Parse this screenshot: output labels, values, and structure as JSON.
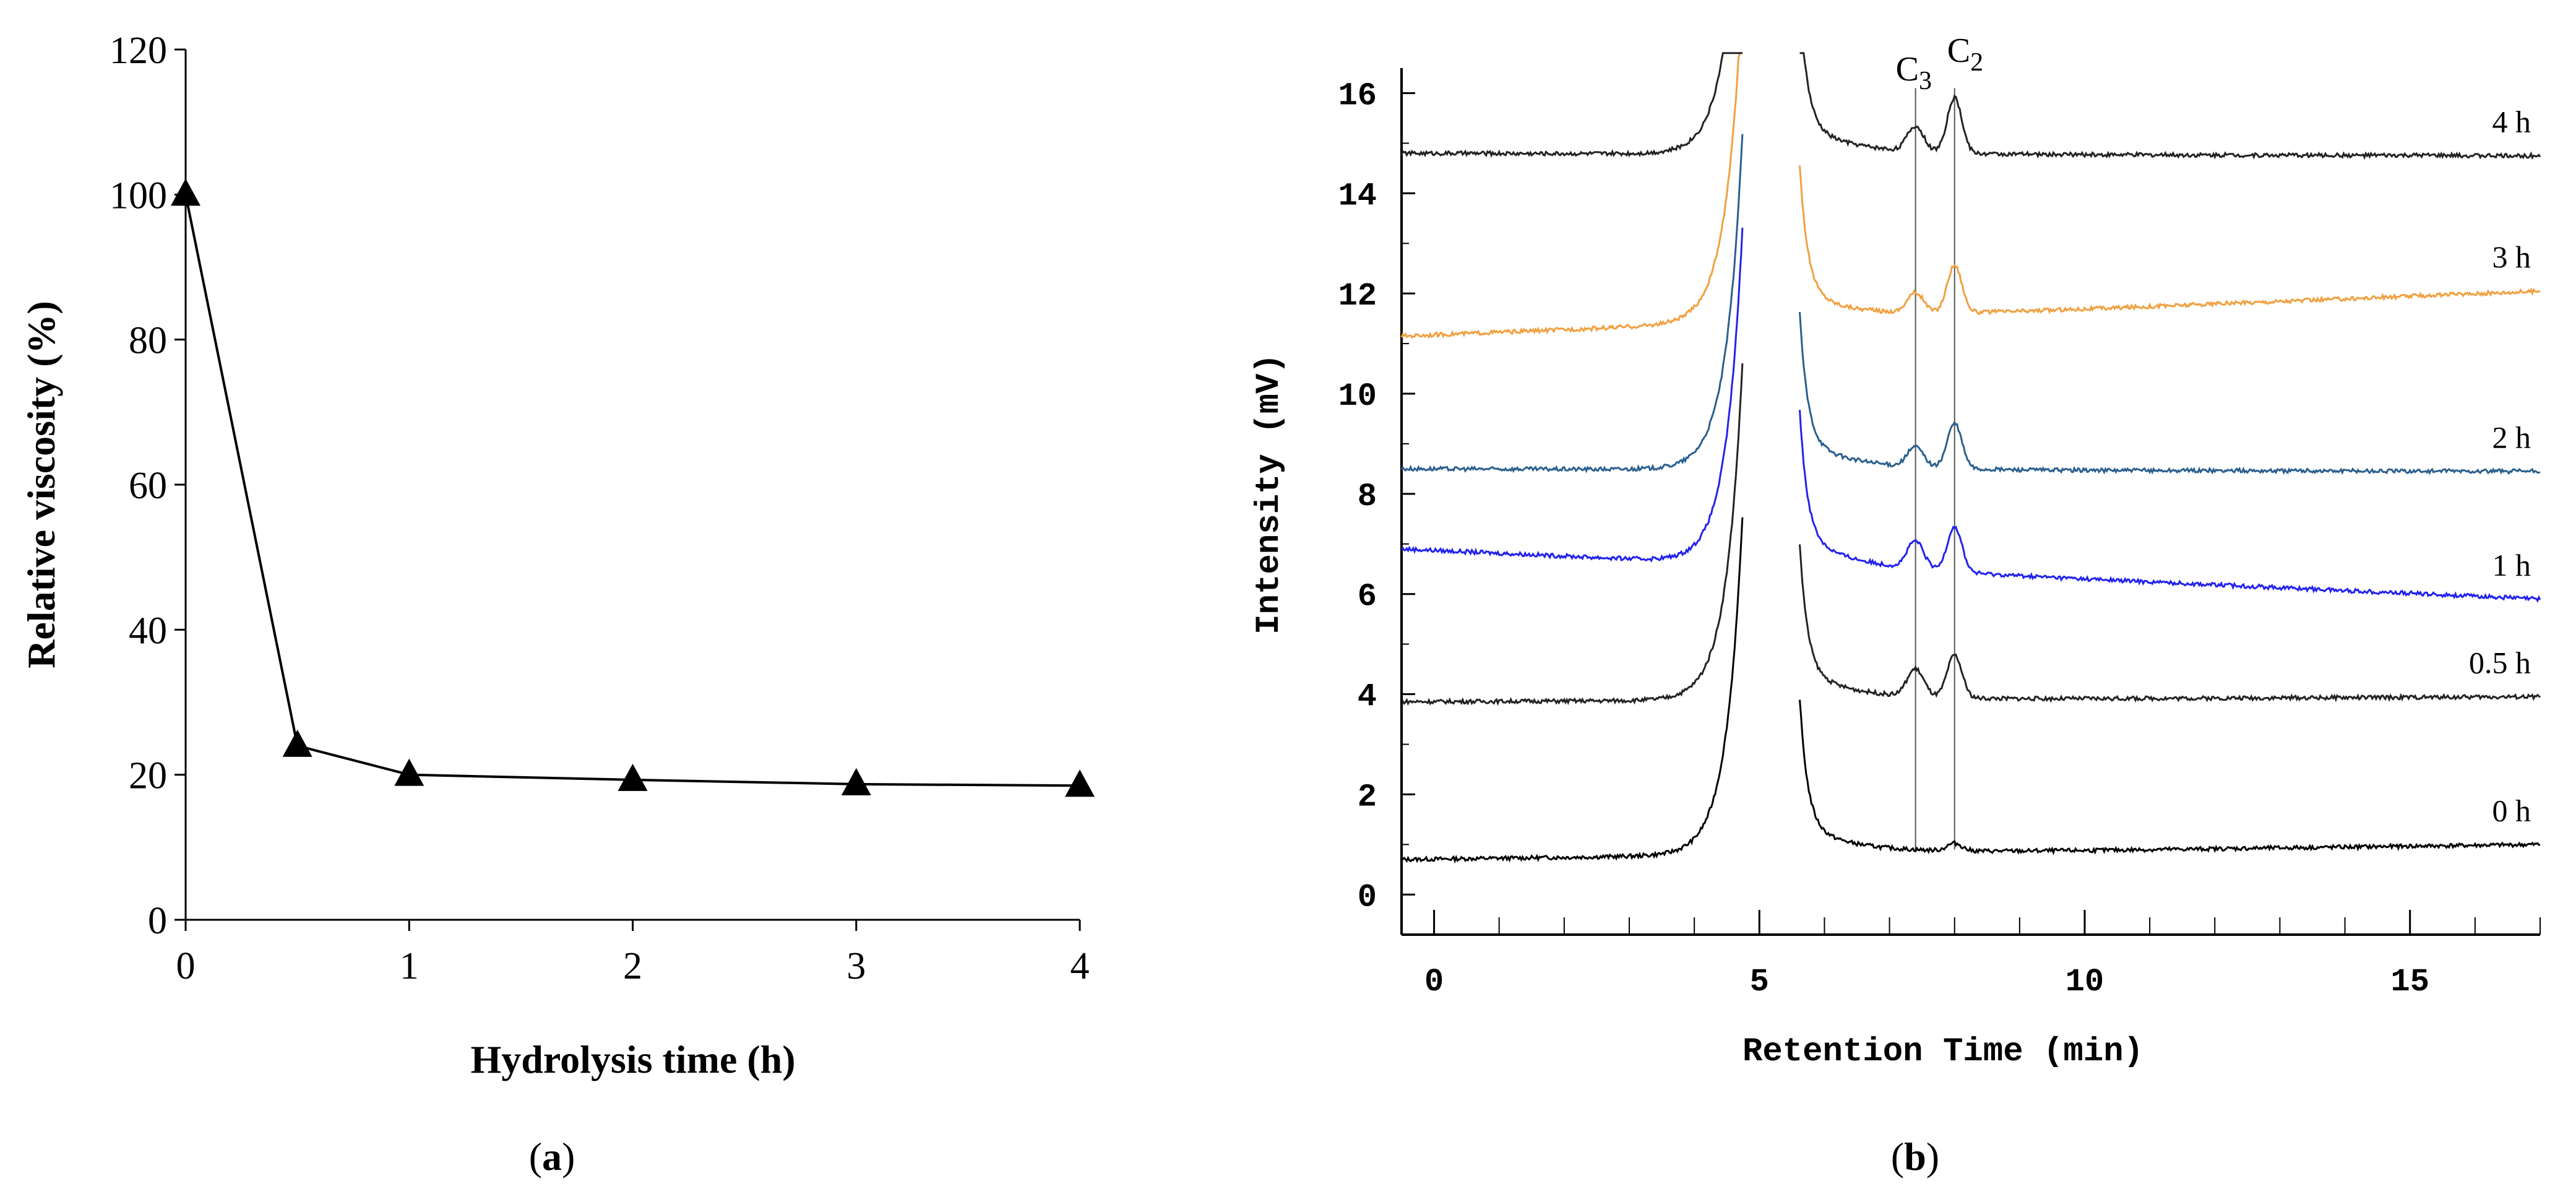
{
  "chart_data": [
    {
      "type": "line",
      "panel_label": "(a)",
      "panel_letter": "a",
      "xlabel": "Hydrolysis time (h)",
      "ylabel": "Relative viscosity (%)",
      "xlim": [
        0,
        4
      ],
      "ylim": [
        0,
        120
      ],
      "xticks": [
        0,
        1,
        2,
        3,
        4
      ],
      "yticks": [
        0,
        20,
        40,
        60,
        80,
        100,
        120
      ],
      "series": [
        {
          "name": "Relative viscosity",
          "marker": "triangle",
          "x": [
            0,
            0.5,
            1,
            2,
            3,
            4
          ],
          "y": [
            100,
            24,
            20,
            19.3,
            18.7,
            18.5
          ]
        }
      ]
    },
    {
      "type": "line",
      "panel_label": "(b)",
      "panel_letter": "b",
      "xlabel": "Retention Time (min)",
      "ylabel": "Intensity (mV)",
      "xlim": [
        -0.5,
        17
      ],
      "ylim": [
        -0.8,
        16.5
      ],
      "xticks": [
        0,
        5,
        10,
        15
      ],
      "yticks": [
        0,
        2,
        4,
        6,
        8,
        10,
        12,
        14,
        16
      ],
      "peak_labels": [
        {
          "text": "C",
          "sub": "3",
          "x": 7.4
        },
        {
          "text": "C",
          "sub": "2",
          "x": 8.0
        }
      ],
      "series": [
        {
          "name": "0 h",
          "color": "#000000",
          "baseline_start": 0.7,
          "baseline_end": 1.0,
          "c3": 0.0,
          "c2": 0.15
        },
        {
          "name": "0.5 h",
          "color": "#222222",
          "baseline_start": 3.85,
          "baseline_end": 3.95,
          "c3": 0.55,
          "c2": 0.85
        },
        {
          "name": "1 h",
          "color": "#2222ee",
          "baseline_start": 6.9,
          "baseline_end": 5.9,
          "c3": 0.55,
          "c2": 0.9
        },
        {
          "name": "2 h",
          "color": "#2a5f8f",
          "baseline_start": 8.5,
          "baseline_end": 8.45,
          "c3": 0.4,
          "c2": 0.9
        },
        {
          "name": "3 h",
          "color": "#f0a040",
          "baseline_start": 11.15,
          "baseline_end": 12.05,
          "c3": 0.4,
          "c2": 0.95
        },
        {
          "name": "4 h",
          "color": "#222222",
          "baseline_start": 14.8,
          "baseline_end": 14.75,
          "c3": 0.5,
          "c2": 1.1
        }
      ]
    }
  ]
}
